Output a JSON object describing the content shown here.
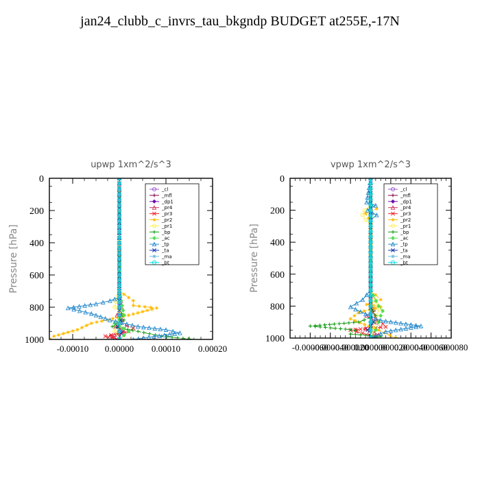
{
  "title": "jan24_clubb_c_invrs_tau_bkgndp  BUDGET at255E,-17N",
  "chart_data": [
    {
      "type": "line",
      "title": "upwp   1xm^2/s^3",
      "ylabel": "Pressure  [hPa]",
      "ylim": [
        1000,
        0
      ],
      "xlim": [
        -0.00015,
        0.0002
      ],
      "yticks": [
        "0",
        "200",
        "400",
        "600",
        "800",
        "1000"
      ],
      "yticks_values": [
        0,
        200,
        400,
        600,
        800,
        1000
      ],
      "xticks": [
        "-0.00010",
        "0.00000",
        "0.00010",
        "0.00020"
      ],
      "xticks_values": [
        -0.0001,
        0,
        0.0001,
        0.0002
      ],
      "legend": [
        "_cl",
        "_mfl",
        "_dp1",
        "_pr4",
        "_pr3",
        "_pr2",
        "_pr1",
        "_bp",
        "_ac",
        "_tp",
        "_ta",
        "_ma",
        "_bt"
      ],
      "series": [
        {
          "name": "_cl",
          "color": "#9955cc",
          "x": [
            0,
            0,
            0,
            0,
            0,
            0,
            0,
            0,
            0,
            0,
            0,
            0,
            0
          ],
          "y": [
            0,
            100,
            200,
            300,
            400,
            500,
            600,
            700,
            800,
            850,
            900,
            950,
            1000
          ]
        },
        {
          "name": "_mfl",
          "color": "#800040",
          "x": [
            0,
            0,
            0,
            0,
            0,
            0,
            0,
            0,
            0,
            0,
            0,
            0,
            0
          ],
          "y": [
            0,
            100,
            200,
            300,
            400,
            500,
            600,
            700,
            800,
            850,
            900,
            950,
            1000
          ]
        },
        {
          "name": "_dp1",
          "color": "#6a0dad",
          "x": [
            0,
            0,
            0,
            0,
            0,
            0,
            0,
            0,
            0,
            0,
            0,
            0,
            0
          ],
          "y": [
            0,
            100,
            200,
            300,
            400,
            500,
            600,
            700,
            800,
            850,
            900,
            950,
            1000
          ]
        },
        {
          "name": "_pr4",
          "color": "#cc3366",
          "x": [
            0,
            0,
            0,
            0,
            0,
            3e-06,
            5e-06,
            -5e-06,
            6e-06,
            -8e-06,
            1e-05,
            -2e-05,
            0
          ],
          "y": [
            0,
            200,
            400,
            600,
            700,
            760,
            800,
            850,
            880,
            920,
            950,
            980,
            1000
          ]
        },
        {
          "name": "_pr3",
          "color": "#ee2222",
          "x": [
            0,
            0,
            0,
            0,
            5e-06,
            2e-06,
            3e-05,
            2e-05,
            -3e-05,
            0
          ],
          "y": [
            0,
            400,
            600,
            800,
            850,
            900,
            930,
            950,
            980,
            1000
          ]
        },
        {
          "name": "_pr2",
          "color": "#ffbb00",
          "x": [
            0,
            0,
            3e-05,
            3e-05,
            8e-05,
            2e-05,
            -6e-05,
            -9e-05,
            -0.00014,
            -0.00015
          ],
          "y": [
            0,
            700,
            760,
            790,
            805,
            850,
            900,
            940,
            980,
            1000
          ]
        },
        {
          "name": "_pr1",
          "color": "#ffee55",
          "x": [
            0,
            0,
            -1e-05,
            1e-05,
            -8e-06,
            -1e-05,
            0
          ],
          "y": [
            0,
            700,
            800,
            850,
            900,
            950,
            1000
          ]
        },
        {
          "name": "_bp",
          "color": "#119911",
          "x": [
            0,
            0,
            1e-05,
            -1.5e-05,
            4e-05,
            9e-05,
            0.00016
          ],
          "y": [
            0,
            800,
            880,
            920,
            950,
            980,
            1000
          ]
        },
        {
          "name": "_ac",
          "color": "#55dd55",
          "x": [
            0,
            0,
            1e-05,
            -1e-05,
            2e-05,
            0
          ],
          "y": [
            0,
            700,
            850,
            900,
            950,
            1000
          ]
        },
        {
          "name": "_tp",
          "color": "#2288cc",
          "x": [
            0,
            0,
            -2e-05,
            -5e-05,
            -0.00011,
            -6e-05,
            -2e-05,
            4e-05,
            0.0001,
            0.00013,
            3e-05
          ],
          "y": [
            0,
            740,
            760,
            780,
            805,
            840,
            880,
            920,
            940,
            960,
            1000
          ]
        },
        {
          "name": "_ta",
          "color": "#1133aa",
          "x": [
            0,
            0,
            0,
            0,
            3e-06,
            -3e-06,
            4e-06,
            0
          ],
          "y": [
            0,
            400,
            700,
            850,
            880,
            920,
            960,
            1000
          ]
        },
        {
          "name": "_ma",
          "color": "#66bbdd",
          "x": [
            0,
            0,
            0,
            0,
            0,
            0,
            0,
            0,
            0,
            0,
            0,
            0,
            0
          ],
          "y": [
            0,
            100,
            200,
            300,
            400,
            500,
            600,
            700,
            800,
            850,
            900,
            950,
            1000
          ]
        },
        {
          "name": "_bt",
          "color": "#00dddd",
          "x": [
            0,
            0,
            0,
            0,
            0,
            0,
            0,
            0,
            0,
            0,
            0,
            0,
            0
          ],
          "y": [
            0,
            100,
            200,
            300,
            400,
            500,
            600,
            700,
            800,
            850,
            900,
            950,
            1000
          ]
        }
      ]
    },
    {
      "type": "line",
      "title": "vpwp   1xm^2/s^3",
      "ylabel": "Pressure  [hPa]",
      "ylim": [
        1000,
        0
      ],
      "xlim": [
        -8e-05,
        8e-05
      ],
      "yticks": [
        "0",
        "200",
        "400",
        "600",
        "800",
        "1000"
      ],
      "yticks_values": [
        0,
        200,
        400,
        600,
        800,
        1000
      ],
      "xticks": [
        "-0.000060",
        "-0.000040",
        "-0.000020",
        "0.000000",
        "0.000020",
        "0.000040",
        "0.000060",
        "0.000080"
      ],
      "xticks_values": [
        -6e-05,
        -4e-05,
        -2e-05,
        0,
        2e-05,
        4e-05,
        6e-05,
        8e-05
      ],
      "legend": [
        "_cl",
        "_mfl",
        "_dp1",
        "_pr4",
        "_pr3",
        "_pr2",
        "_pr1",
        "_bp",
        "_ac",
        "_tp",
        "_ta",
        "_ma",
        "_bt"
      ],
      "series": [
        {
          "name": "_cl",
          "color": "#9955cc",
          "x": [
            0,
            0,
            0,
            0,
            0,
            0,
            0,
            0,
            0,
            0,
            0,
            0,
            0
          ],
          "y": [
            0,
            100,
            200,
            300,
            400,
            500,
            600,
            700,
            800,
            850,
            900,
            950,
            1000
          ]
        },
        {
          "name": "_mfl",
          "color": "#800040",
          "x": [
            0,
            0,
            0,
            0,
            0,
            0,
            0,
            0,
            0,
            0,
            0,
            0,
            0
          ],
          "y": [
            0,
            100,
            200,
            300,
            400,
            500,
            600,
            700,
            800,
            850,
            900,
            950,
            1000
          ]
        },
        {
          "name": "_dp1",
          "color": "#6a0dad",
          "x": [
            0,
            0,
            0,
            0,
            0,
            0,
            0,
            0,
            0,
            0,
            0,
            0,
            0
          ],
          "y": [
            0,
            100,
            200,
            300,
            400,
            500,
            600,
            700,
            800,
            850,
            900,
            950,
            1000
          ]
        },
        {
          "name": "_pr4",
          "color": "#cc3366",
          "x": [
            0,
            0,
            0,
            3e-06,
            -4e-06,
            6e-06,
            -5e-06,
            8e-06,
            0
          ],
          "y": [
            0,
            700,
            780,
            820,
            860,
            900,
            940,
            980,
            1000
          ]
        },
        {
          "name": "_pr3",
          "color": "#ee2222",
          "x": [
            0,
            0,
            5e-06,
            1.2e-05,
            1.5e-05,
            -2e-05,
            -8e-06,
            5e-06,
            0
          ],
          "y": [
            0,
            800,
            880,
            910,
            930,
            950,
            970,
            990,
            1000
          ]
        },
        {
          "name": "_pr2",
          "color": "#ffbb00",
          "x": [
            0,
            0,
            6e-06,
            -5e-06,
            -2e-06,
            0,
            0,
            1e-05,
            -4e-06,
            1e-05,
            -1.2e-05,
            -2e-05,
            8e-06,
            2.5e-05
          ],
          "y": [
            0,
            160,
            190,
            220,
            250,
            280,
            700,
            760,
            790,
            805,
            840,
            880,
            950,
            1000
          ]
        },
        {
          "name": "_pr1",
          "color": "#ffee55",
          "x": [
            0,
            0,
            -6e-06,
            -8e-06,
            -5e-06,
            0,
            0,
            8e-06,
            4e-06,
            0
          ],
          "y": [
            0,
            170,
            200,
            230,
            260,
            290,
            700,
            820,
            900,
            1000
          ]
        },
        {
          "name": "_bp",
          "color": "#119911",
          "x": [
            0,
            0,
            5e-06,
            -1.2e-05,
            -6e-05,
            -1.5e-05,
            -2e-05,
            1e-05,
            0
          ],
          "y": [
            0,
            800,
            860,
            900,
            925,
            950,
            975,
            990,
            1000
          ]
        },
        {
          "name": "_ac",
          "color": "#55dd55",
          "x": [
            0,
            0,
            8e-06,
            1.2e-05,
            1e-05,
            8e-06,
            5e-06,
            0
          ],
          "y": [
            0,
            700,
            800,
            830,
            860,
            900,
            950,
            1000
          ]
        },
        {
          "name": "_tp",
          "color": "#2288cc",
          "x": [
            0,
            -4e-06,
            5e-06,
            -3e-06,
            6e-06,
            0,
            0,
            -8e-06,
            -2e-05,
            -5e-06,
            1e-05,
            5e-05,
            1.5e-05,
            0
          ],
          "y": [
            0,
            150,
            170,
            200,
            230,
            260,
            700,
            760,
            805,
            850,
            890,
            925,
            960,
            1000
          ]
        },
        {
          "name": "_ta",
          "color": "#1133aa",
          "x": [
            0,
            0,
            0,
            0,
            3e-06,
            -3e-06,
            0
          ],
          "y": [
            0,
            400,
            700,
            850,
            900,
            950,
            1000
          ]
        },
        {
          "name": "_ma",
          "color": "#66bbdd",
          "x": [
            0,
            0,
            0,
            0,
            0,
            0,
            0,
            0,
            0,
            0,
            0,
            0,
            0
          ],
          "y": [
            0,
            100,
            200,
            300,
            400,
            500,
            600,
            700,
            800,
            850,
            900,
            950,
            1000
          ]
        },
        {
          "name": "_bt",
          "color": "#00dddd",
          "x": [
            0,
            0,
            0,
            0,
            0,
            0,
            0,
            0,
            0,
            0,
            0,
            0,
            0
          ],
          "y": [
            0,
            100,
            200,
            300,
            400,
            500,
            600,
            700,
            800,
            850,
            900,
            950,
            1000
          ]
        }
      ]
    }
  ]
}
